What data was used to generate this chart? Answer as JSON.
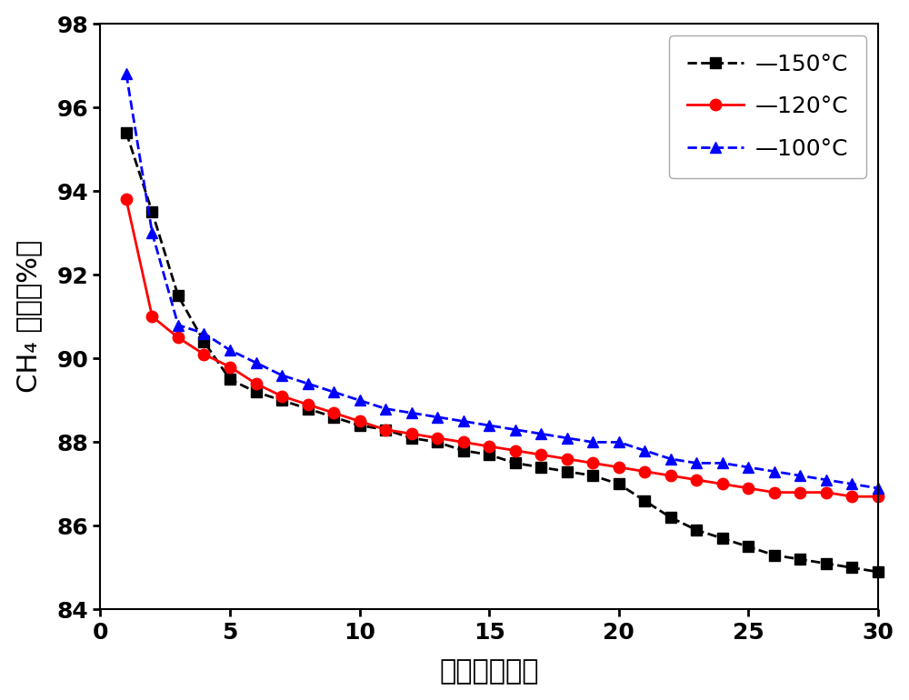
{
  "title": "",
  "xlabel": "时间（小时）",
  "ylabel": "CH₄ 转化（%）",
  "xlim": [
    0,
    30
  ],
  "ylim": [
    84,
    98
  ],
  "xticks": [
    0,
    5,
    10,
    15,
    20,
    25,
    30
  ],
  "yticks": [
    84,
    86,
    88,
    90,
    92,
    94,
    96,
    98
  ],
  "series": [
    {
      "label": "—150°C",
      "color": "#000000",
      "marker": "s",
      "linestyle": "--",
      "x": [
        1,
        2,
        3,
        4,
        5,
        6,
        7,
        8,
        9,
        10,
        11,
        12,
        13,
        14,
        15,
        16,
        17,
        18,
        19,
        20,
        21,
        22,
        23,
        24,
        25,
        26,
        27,
        28,
        29,
        30
      ],
      "y": [
        95.4,
        93.5,
        91.5,
        90.4,
        89.5,
        89.2,
        89.0,
        88.8,
        88.6,
        88.4,
        88.3,
        88.1,
        88.0,
        87.8,
        87.7,
        87.5,
        87.4,
        87.3,
        87.2,
        87.0,
        86.6,
        86.2,
        85.9,
        85.7,
        85.5,
        85.3,
        85.2,
        85.1,
        85.0,
        84.9
      ]
    },
    {
      "label": "—120°C",
      "color": "#ff0000",
      "marker": "o",
      "linestyle": "-",
      "x": [
        1,
        2,
        3,
        4,
        5,
        6,
        7,
        8,
        9,
        10,
        11,
        12,
        13,
        14,
        15,
        16,
        17,
        18,
        19,
        20,
        21,
        22,
        23,
        24,
        25,
        26,
        27,
        28,
        29,
        30
      ],
      "y": [
        93.8,
        91.0,
        90.5,
        90.1,
        89.8,
        89.4,
        89.1,
        88.9,
        88.7,
        88.5,
        88.3,
        88.2,
        88.1,
        88.0,
        87.9,
        87.8,
        87.7,
        87.6,
        87.5,
        87.4,
        87.3,
        87.2,
        87.1,
        87.0,
        86.9,
        86.8,
        86.8,
        86.8,
        86.7,
        86.7
      ]
    },
    {
      "label": "—100°C",
      "color": "#0000ff",
      "marker": "^",
      "linestyle": "--",
      "x": [
        1,
        2,
        3,
        4,
        5,
        6,
        7,
        8,
        9,
        10,
        11,
        12,
        13,
        14,
        15,
        16,
        17,
        18,
        19,
        20,
        21,
        22,
        23,
        24,
        25,
        26,
        27,
        28,
        29,
        30
      ],
      "y": [
        96.8,
        93.0,
        90.8,
        90.6,
        90.2,
        89.9,
        89.6,
        89.4,
        89.2,
        89.0,
        88.8,
        88.7,
        88.6,
        88.5,
        88.4,
        88.3,
        88.2,
        88.1,
        88.0,
        88.0,
        87.8,
        87.6,
        87.5,
        87.5,
        87.4,
        87.3,
        87.2,
        87.1,
        87.0,
        86.9
      ]
    }
  ],
  "markersize": 9,
  "linewidth": 2.0
}
